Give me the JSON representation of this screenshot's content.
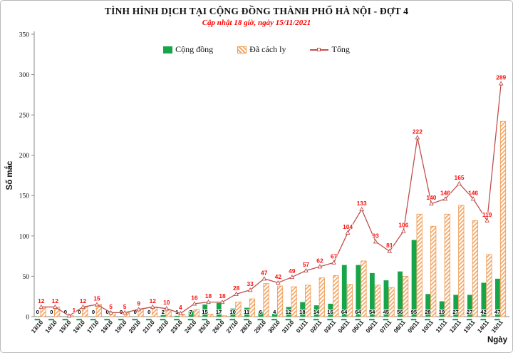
{
  "header": {
    "title": "TÌNH HÌNH DỊCH TẠI CỘNG ĐỒNG THÀNH PHỐ HÀ NỘI - ĐỢT 4",
    "subtitle": "Cập nhật 18 giờ, ngày 15/11/2021"
  },
  "legend": {
    "items": [
      {
        "label": "Cộng đồng",
        "color": "#17a54a",
        "type": "bar"
      },
      {
        "label": "Đã cách ly",
        "color": "#f5a96b",
        "type": "hatched-bar"
      },
      {
        "label": "Tổng",
        "color": "#c0504d",
        "type": "line"
      }
    ]
  },
  "axes": {
    "y_label": "Số mắc",
    "x_label": "Ngày",
    "y_min": 0,
    "y_max": 350,
    "y_step": 50
  },
  "chart_data": {
    "type": "bar",
    "title": "TÌNH HÌNH DỊCH TẠI CỘNG ĐỒNG THÀNH PHỐ HÀ NỘI - ĐỢT 4",
    "subtitle": "Cập nhật 18 giờ, ngày 15/11/2021",
    "xlabel": "Ngày",
    "ylabel": "Số mắc",
    "ylim": [
      0,
      350
    ],
    "grid": false,
    "legend_position": "top-center",
    "categories": [
      "13/10",
      "14/10",
      "15/10",
      "16/10",
      "17/10",
      "18/10",
      "19/10",
      "20/10",
      "21/10",
      "22/10",
      "23/10",
      "24/10",
      "25/10",
      "26/10",
      "27/10",
      "28/10",
      "29/10",
      "30/10",
      "31/10",
      "01/11",
      "02/11",
      "03/11",
      "04/11",
      "05/11",
      "06/11",
      "07/11",
      "08/11",
      "09/11",
      "10/11",
      "11/11",
      "12/11",
      "13/11",
      "14/11",
      "15/11"
    ],
    "series": [
      {
        "name": "Cộng đồng",
        "type": "bar",
        "color": "#17a54a",
        "label_color": "#000000",
        "values": [
          0,
          0,
          0,
          0,
          0,
          0,
          0,
          0,
          0,
          2,
          1,
          7,
          15,
          17,
          10,
          11,
          6,
          4,
          12,
          18,
          14,
          16,
          64,
          64,
          54,
          45,
          56,
          95,
          28,
          19,
          27,
          27,
          42,
          47
        ]
      },
      {
        "name": "Đã cách ly",
        "type": "bar",
        "color": "#f5a96b",
        "pattern": "diagonal-hatch",
        "values": [
          12,
          12,
          1,
          12,
          15,
          5,
          5,
          9,
          12,
          8,
          3,
          9,
          3,
          1,
          18,
          22,
          41,
          38,
          37,
          39,
          48,
          51,
          40,
          69,
          39,
          36,
          50,
          127,
          112,
          127,
          138,
          119,
          77,
          242
        ]
      },
      {
        "name": "Tổng",
        "type": "line",
        "color": "#c0504d",
        "label_color": "#fb0f0c",
        "marker": "triangle",
        "values": [
          12,
          12,
          1,
          12,
          15,
          5,
          5,
          9,
          12,
          10,
          4,
          16,
          18,
          18,
          28,
          33,
          47,
          42,
          49,
          57,
          62,
          67,
          104,
          133,
          93,
          81,
          106,
          222,
          140,
          146,
          165,
          146,
          119,
          289
        ]
      }
    ]
  }
}
